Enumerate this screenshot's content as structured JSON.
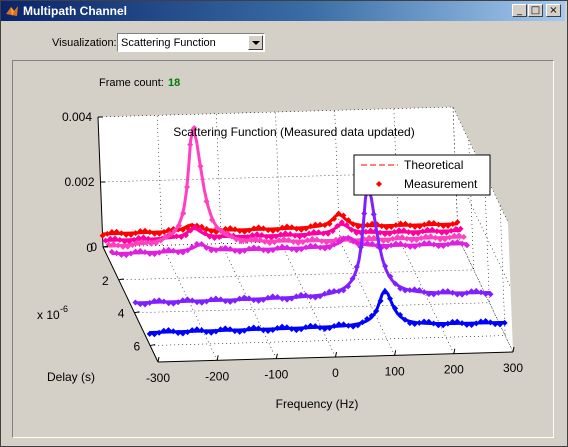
{
  "window": {
    "title": "Multipath Channel",
    "minimize": "_",
    "maximize": "□",
    "close": "×"
  },
  "controls": {
    "visualization_label": "Visualization:",
    "visualization_value": "Scattering Function"
  },
  "status": {
    "frame_count_label": "Frame count:",
    "frame_count_value": "18"
  },
  "chart_data": {
    "type": "line",
    "title": "Scattering Function (Measured data updated)",
    "xlabel": "Frequency (Hz)",
    "ylabel": "Delay (s)",
    "y_exponent": "x 10",
    "y_exponent_power": "-6",
    "xticks": [
      "-300",
      "-200",
      "-100",
      "0",
      "100",
      "200",
      "300"
    ],
    "yticks": [
      "0",
      "2",
      "4",
      "6"
    ],
    "zticks": [
      "0",
      "0.002",
      "0.004"
    ],
    "xlim": [
      -300,
      300
    ],
    "ylim": [
      0,
      7
    ],
    "zlim": [
      0,
      0.004
    ],
    "grid": true,
    "legend": {
      "placement": "top-right",
      "entries": [
        "Theoretical",
        "Measurement"
      ]
    },
    "colors": {
      "path1": "#ff0000",
      "path2": "#ff00a0",
      "path3": "#ff40c0",
      "path4": "#e020e0",
      "path5": "#8020ff",
      "path6": "#0000ff"
    },
    "series": [
      {
        "path_delay": 0.0,
        "floor": 0.0004,
        "peaks": [
          [
            -150,
            0.0002
          ],
          [
            100,
            0.0004
          ]
        ]
      },
      {
        "path_delay": 0.4,
        "floor": 0.0004,
        "peaks": [
          [
            -150,
            0.0003
          ],
          [
            100,
            0.0003
          ]
        ]
      },
      {
        "path_delay": 0.8,
        "floor": 0.0004,
        "peaks": [
          [
            -150,
            0.0036
          ]
        ]
      },
      {
        "path_delay": 1.2,
        "floor": 0.0004,
        "peaks": [
          [
            -150,
            0.0002
          ],
          [
            100,
            0.0003
          ]
        ]
      },
      {
        "path_delay": 4.2,
        "floor": 0.0004,
        "peaks": [
          [
            100,
            0.0034
          ]
        ]
      },
      {
        "path_delay": 6.0,
        "floor": 0.0004,
        "peaks": [
          [
            100,
            0.0011
          ]
        ]
      }
    ]
  }
}
